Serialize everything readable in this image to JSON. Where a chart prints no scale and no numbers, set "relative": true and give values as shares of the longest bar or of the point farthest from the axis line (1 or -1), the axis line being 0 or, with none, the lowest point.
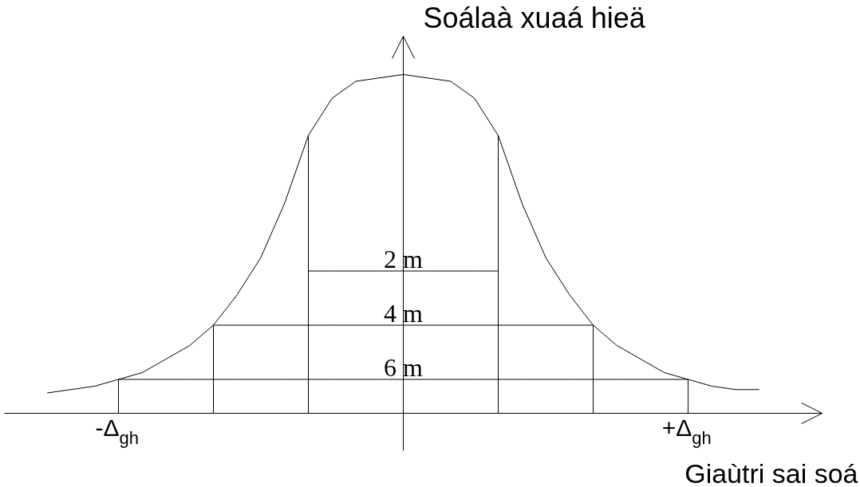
{
  "chart_data": {
    "type": "line",
    "relative": true,
    "ylabel": "Soálaà xuaá hieä",
    "xlabel": "Giaùtri sai soá",
    "categories": [
      null,
      null,
      null,
      "-Δ$_{gh}$",
      null,
      null,
      null,
      null,
      null,
      null,
      null,
      null,
      null,
      null,
      null,
      null,
      null,
      null,
      null,
      null,
      null,
      null,
      null,
      null,
      null,
      null,
      null,
      "+Δ$_{gh}$",
      null,
      null,
      null
    ],
    "series": [
      {
        "color": "#000000",
        "values": [
          0.06,
          0.07,
          0.08,
          0.1,
          0.12,
          0.16,
          0.2,
          0.26,
          0.35,
          0.46,
          0.62,
          0.82,
          0.93,
          0.98,
          0.99,
          1.0,
          0.99,
          0.98,
          0.93,
          0.82,
          0.62,
          0.46,
          0.35,
          0.26,
          0.2,
          0.16,
          0.12,
          0.1,
          0.08,
          0.07,
          0.07
        ]
      },
      {
        "color": "#000000",
        "values": [
          null,
          null,
          null,
          null,
          null,
          null,
          null,
          null,
          null,
          null,
          null,
          0.42,
          0.42,
          0.42,
          0.42,
          0.42,
          0.42,
          0.42,
          0.42,
          0.42,
          null,
          null,
          null,
          null,
          null,
          null,
          null,
          null,
          null,
          null,
          null
        ]
      },
      {
        "color": "#000000",
        "values": [
          null,
          null,
          null,
          null,
          null,
          null,
          null,
          0.26,
          0.26,
          0.26,
          0.26,
          0.26,
          0.26,
          0.26,
          0.26,
          0.26,
          0.26,
          0.26,
          0.26,
          0.26,
          0.26,
          0.26,
          0.26,
          0.26,
          null,
          null,
          null,
          null,
          null,
          null,
          null
        ]
      },
      {
        "color": "#000000",
        "values": [
          null,
          null,
          null,
          0.1,
          0.1,
          0.1,
          0.1,
          0.1,
          0.1,
          0.1,
          0.1,
          0.1,
          0.1,
          0.1,
          0.1,
          0.1,
          0.1,
          0.1,
          0.1,
          0.1,
          0.1,
          0.1,
          0.1,
          0.1,
          0.1,
          0.1,
          0.1,
          0.1,
          null,
          null,
          null
        ]
      },
      {
        "type": "bar",
        "color": "#000000",
        "values": [
          null,
          null,
          null,
          0.1,
          null,
          null,
          null,
          0.26,
          null,
          null,
          null,
          0.82,
          null,
          null,
          null,
          null,
          null,
          null,
          null,
          0.82,
          null,
          null,
          null,
          0.26,
          null,
          null,
          null,
          0.1,
          null,
          null,
          null
        ]
      }
    ],
    "annotations": [
      {
        "text": "2 m",
        "y": 0.42
      },
      {
        "text": "4 m",
        "y": 0.26
      },
      {
        "text": "6 m",
        "y": 0.1
      }
    ]
  }
}
